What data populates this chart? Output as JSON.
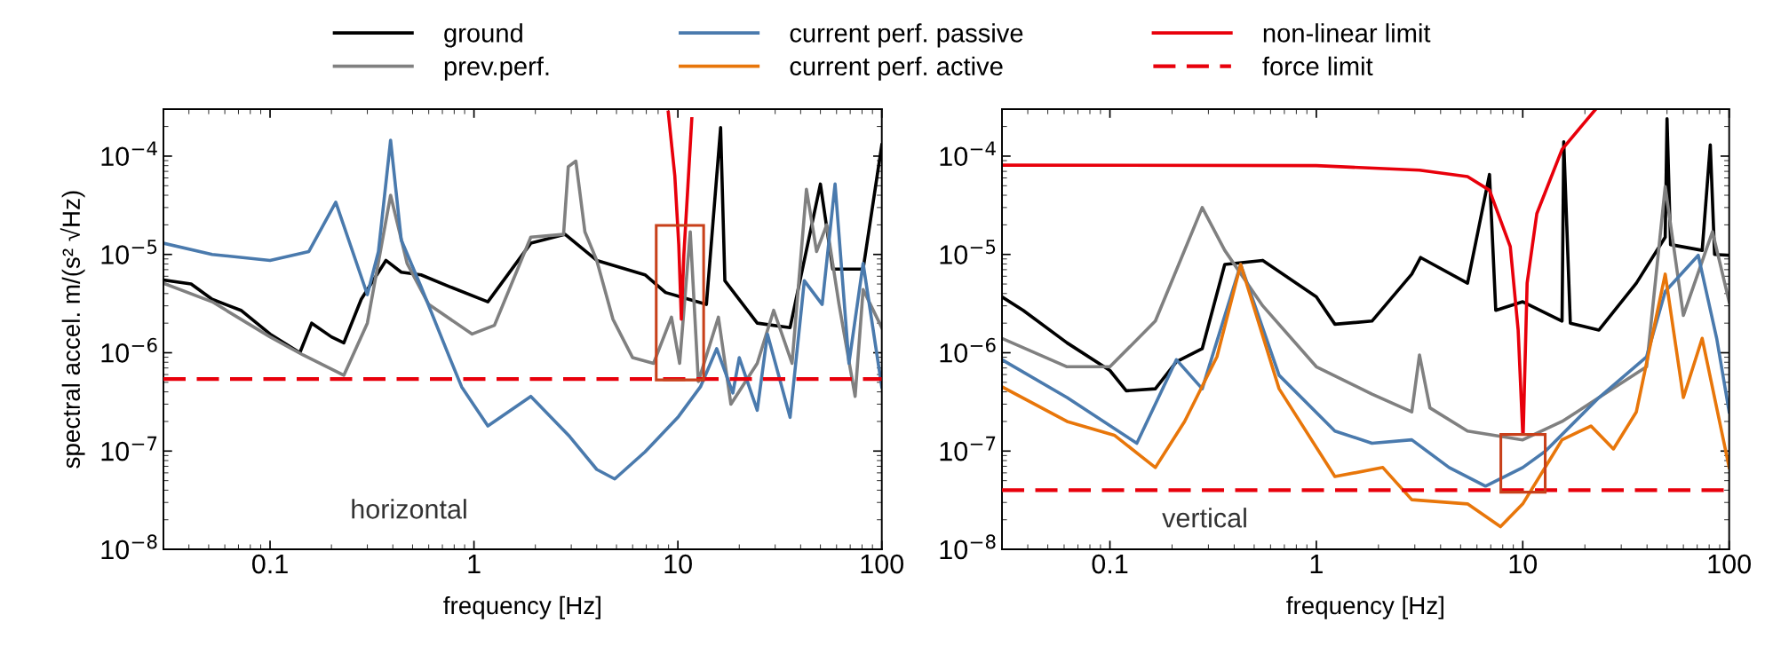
{
  "chart_data": [
    {
      "type": "line",
      "ylabel": "spectral accel. m/(s² √Hz)",
      "xlabel": "frequency [Hz]",
      "log": "xy",
      "xlim": [
        0.03,
        100
      ],
      "ylim": [
        1e-08,
        0.0003
      ],
      "xticks": [
        0.1,
        1,
        10,
        100
      ],
      "yticks": [
        {
          "value": 1e-08,
          "label": "10$^{−8}$"
        },
        {
          "value": 1e-07,
          "label": "10$^{−7}$"
        },
        {
          "value": 1e-06,
          "label": "10$^{−6}$"
        },
        {
          "value": 1e-05,
          "label": "10$^{−5}$"
        },
        {
          "value": 0.0001,
          "label": "10$^{−4}$"
        }
      ],
      "legend": "top",
      "grid": false,
      "line_style": "solid",
      "marker": "none",
      "annotations": [
        "horizontal"
      ],
      "ref_lines": [
        {
          "axis": "y",
          "value": 5.4e-07,
          "label": "force limit",
          "color": "#e8000b",
          "line_style": "dashed"
        }
      ],
      "series": [
        {
          "name": "ground",
          "color": "#000000",
          "x": [
            0.03,
            0.041,
            0.052,
            0.072,
            0.1,
            0.14,
            0.16,
            0.2,
            0.23,
            0.28,
            0.37,
            0.44,
            0.55,
            0.76,
            1.17,
            1.9,
            2.8,
            4.0,
            6.9,
            8.7,
            13.8,
            16.2,
            17,
            24.5,
            35.5,
            50,
            57.5,
            81,
            100
          ],
          "values": [
            5.5e-06,
            5e-06,
            3.5e-06,
            2.7e-06,
            1.55e-06,
            1e-06,
            2e-06,
            1.45e-06,
            1.26e-06,
            3.5e-06,
            8.7e-06,
            6.6e-06,
            6.2e-06,
            4.7e-06,
            3.3e-06,
            1.3e-05,
            1.6e-05,
            8.7e-06,
            6.2e-06,
            4.1e-06,
            3.1e-06,
            0.000195,
            5.4e-06,
            2e-06,
            1.8e-06,
            5.2e-05,
            7.1e-06,
            7.1e-06,
            0.00013
          ]
        },
        {
          "name": "prev.perf.",
          "color": "#808080",
          "x": [
            0.03,
            0.052,
            0.1,
            0.145,
            0.19,
            0.23,
            0.3,
            0.39,
            0.47,
            0.6,
            0.98,
            1.26,
            1.9,
            2.75,
            2.9,
            3.16,
            3.5,
            4.0,
            4.8,
            6.0,
            7.6,
            9.3,
            10.2,
            11.5,
            12.6,
            15.8,
            18.2,
            24.5,
            29.5,
            36.3,
            42.7,
            47.9,
            53.7,
            61.7,
            74,
            81,
            100
          ],
          "values": [
            5.1e-06,
            3.3e-06,
            1.45e-06,
            9.5e-07,
            7.2e-07,
            5.9e-07,
            2e-06,
            4e-05,
            8.1e-06,
            3.1e-06,
            1.55e-06,
            1.9e-06,
            1.5e-05,
            1.6e-05,
            7.8e-05,
            8.9e-05,
            1.7e-05,
            8.7e-06,
            2.2e-06,
            8.9e-07,
            7.8e-07,
            2.3e-06,
            7.8e-07,
            1.7e-05,
            5.1e-07,
            2.3e-06,
            3e-07,
            7.8e-07,
            2.7e-06,
            7.8e-07,
            4.6e-05,
            1.07e-05,
            2e-05,
            3.1e-06,
            3.6e-07,
            4.4e-06,
            1.8e-06
          ]
        },
        {
          "name": "current perf. passive",
          "color": "#4a7aad",
          "x": [
            0.03,
            0.052,
            0.1,
            0.155,
            0.21,
            0.3,
            0.34,
            0.39,
            0.44,
            0.55,
            0.76,
            0.87,
            1.17,
            1.9,
            2.95,
            4.0,
            4.9,
            6.9,
            10,
            12.9,
            15.5,
            18.6,
            20,
            24.5,
            27.5,
            35.5,
            41.7,
            51,
            59,
            69,
            81,
            100
          ],
          "values": [
            1.3e-05,
            1e-05,
            8.7e-06,
            1.07e-05,
            3.4e-05,
            3.9e-06,
            1.07e-05,
            0.000145,
            1.4e-05,
            4.7e-06,
            8.9e-07,
            4.5e-07,
            1.8e-07,
            3.6e-07,
            1.4e-07,
            6.5e-08,
            5.2e-08,
            9.8e-08,
            2.2e-07,
            4.5e-07,
            1.1e-06,
            3.9e-07,
            8.9e-07,
            2.6e-07,
            1.55e-06,
            2.2e-07,
            5.4e-06,
            3.1e-06,
            5.2e-05,
            7.8e-07,
            8.1e-06,
            4.5e-07
          ]
        },
        {
          "name": "non-linear limit",
          "color": "#e8000b",
          "x": [
            8.97,
            9.66,
            10.1,
            10.4,
            10.7,
            11.2,
            11.7
          ],
          "values": [
            0.00028,
            6.3e-05,
            1.26e-05,
            2.2e-06,
            1e-05,
            5e-05,
            0.00024
          ]
        }
      ]
    },
    {
      "type": "line",
      "xlabel": "frequency [Hz]",
      "log": "xy",
      "xlim": [
        0.03,
        100
      ],
      "ylim": [
        1e-08,
        0.0003
      ],
      "xticks": [
        0.1,
        1,
        10,
        100
      ],
      "yticks": [
        {
          "value": 1e-08,
          "label": "10$^{−8}$"
        },
        {
          "value": 1e-07,
          "label": "10$^{−7}$"
        },
        {
          "value": 1e-06,
          "label": "10$^{−6}$"
        },
        {
          "value": 1e-05,
          "label": "10$^{−5}$"
        },
        {
          "value": 0.0001,
          "label": "10$^{−4}$"
        }
      ],
      "grid": false,
      "line_style": "solid",
      "marker": "none",
      "annotations": [
        "vertical"
      ],
      "ref_lines": [
        {
          "axis": "y",
          "value": 4e-08,
          "color": "#e8000b",
          "line_style": "dashed"
        }
      ],
      "series": [
        {
          "name": "ground",
          "color": "#000000",
          "x": [
            0.03,
            0.038,
            0.062,
            0.1,
            0.12,
            0.166,
            0.21,
            0.28,
            0.36,
            0.55,
            1,
            1.23,
            1.86,
            2.9,
            3.2,
            5.4,
            6.9,
            7.4,
            10,
            15.5,
            15.8,
            17,
            23.4,
            35.5,
            49,
            50,
            52,
            74,
            81,
            85,
            100
          ],
          "values": [
            3.7e-06,
            2.7e-06,
            1.26e-06,
            6.6e-07,
            4.1e-07,
            4.3e-07,
            8.1e-07,
            1.1e-06,
            7.9e-06,
            8.7e-06,
            3.7e-06,
            1.95e-06,
            2.1e-06,
            6.3e-06,
            9.3e-06,
            5.1e-06,
            6.5e-05,
            2.7e-06,
            3.3e-06,
            2.1e-06,
            0.00014,
            2e-06,
            1.7e-06,
            5.1e-06,
            1.5e-05,
            0.00024,
            1.26e-05,
            1.1e-05,
            0.00013,
            1e-05,
            9.8e-06
          ]
        },
        {
          "name": "prev.perf.",
          "color": "#808080",
          "x": [
            0.03,
            0.062,
            0.1,
            0.166,
            0.28,
            0.36,
            0.55,
            1,
            1.86,
            2.9,
            3.16,
            3.55,
            5.4,
            10,
            15.5,
            23.4,
            39.8,
            49,
            60,
            83,
            100
          ],
          "values": [
            1.4e-06,
            7.2e-07,
            7.2e-07,
            2.1e-06,
            3e-05,
            1.1e-05,
            3e-06,
            7.2e-07,
            3.8e-07,
            2.5e-07,
            9.5e-07,
            2.75e-07,
            1.6e-07,
            1.3e-07,
            2e-07,
            3.5e-07,
            7.2e-07,
            4.9e-05,
            2.4e-06,
            1.7e-05,
            3.3e-06
          ]
        },
        {
          "name": "current perf. passive",
          "color": "#4a7aad",
          "x": [
            0.03,
            0.062,
            0.135,
            0.21,
            0.28,
            0.43,
            0.66,
            1.23,
            1.86,
            2.9,
            4.4,
            6.6,
            10,
            12.9,
            23.4,
            39.8,
            49,
            70.8,
            87,
            100
          ],
          "values": [
            8.5e-07,
            3.5e-07,
            1.2e-07,
            8.5e-07,
            4.3e-07,
            7.9e-06,
            5.9e-07,
            1.6e-07,
            1.2e-07,
            1.3e-07,
            6.8e-08,
            4.4e-08,
            6.8e-08,
            1e-07,
            3.5e-07,
            9.1e-07,
            4.2e-06,
            9.8e-06,
            1.4e-06,
            2.5e-07
          ]
        },
        {
          "name": "current perf. active",
          "color": "#e8760a",
          "x": [
            0.03,
            0.062,
            0.105,
            0.166,
            0.23,
            0.33,
            0.43,
            0.66,
            1.23,
            2.1,
            2.9,
            5.4,
            7.8,
            10,
            15.5,
            21.4,
            27.5,
            35.5,
            49,
            60,
            74,
            100
          ],
          "values": [
            4.5e-07,
            2e-07,
            1.45e-07,
            6.8e-08,
            2e-07,
            9.1e-07,
            7.9e-06,
            4.3e-07,
            5.5e-08,
            6.8e-08,
            3.2e-08,
            2.9e-08,
            1.7e-08,
            2.9e-08,
            1.3e-07,
            1.8e-07,
            1.05e-07,
            2.5e-07,
            6.3e-06,
            3.5e-07,
            1.4e-06,
            6.8e-08
          ]
        },
        {
          "name": "non-linear limit",
          "color": "#e8000b",
          "x": [
            0.03,
            1,
            3.16,
            5.4,
            6.9,
            8.7,
            9.5,
            10,
            10.05,
            10.5,
            11.7,
            15.5,
            22.4
          ],
          "values": [
            8.1e-05,
            8e-05,
            7.2e-05,
            6.2e-05,
            4.5e-05,
            1.2e-05,
            1.7e-06,
            1.5e-07,
            1.5e-07,
            5.1e-06,
            2.6e-05,
            0.000117,
            0.000295
          ]
        }
      ]
    }
  ]
}
